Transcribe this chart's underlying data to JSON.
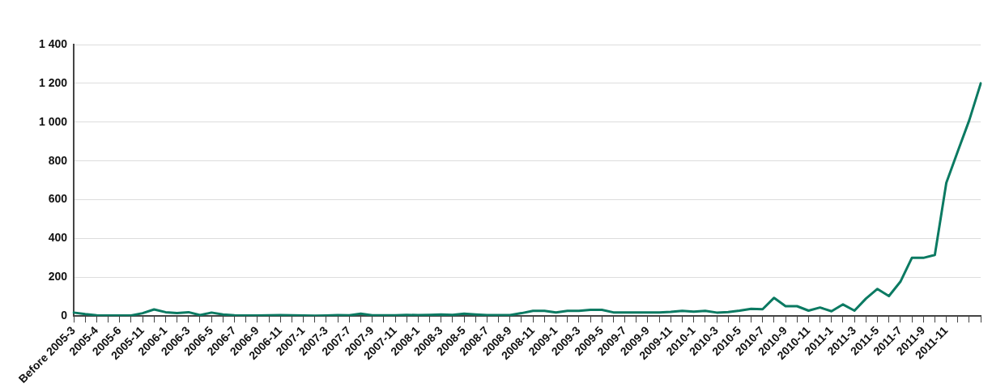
{
  "chart_data": {
    "type": "line",
    "categories": [
      "Before 2005-3",
      null,
      "2005-4",
      null,
      "2005-6",
      null,
      "2005-11",
      null,
      "2006-1",
      null,
      "2006-3",
      null,
      "2006-5",
      null,
      "2006-7",
      null,
      "2006-9",
      null,
      "2006-11",
      null,
      "2007-1",
      null,
      "2007-3",
      null,
      "2007-7",
      null,
      "2007-9",
      null,
      "2007-11",
      null,
      "2008-1",
      null,
      "2008-3",
      null,
      "2008-5",
      null,
      "2008-7",
      null,
      "2008-9",
      null,
      "2008-11",
      null,
      "2009-1",
      null,
      "2009-3",
      null,
      "2009-5",
      null,
      "2009-7",
      null,
      "2009-9",
      null,
      "2009-11",
      null,
      "2010-1",
      null,
      "2010-3",
      null,
      "2010-5",
      null,
      "2010-7",
      null,
      "2010-9",
      null,
      "2010-11",
      null,
      "2011-1",
      null,
      "2011-3",
      null,
      "2011-5",
      null,
      "2011-7",
      null,
      "2011-9",
      null,
      "2011-11",
      null,
      null,
      null
    ],
    "series": [
      {
        "color": "#0b7a62",
        "values": [
          18,
          10,
          4,
          3,
          3,
          3,
          15,
          34,
          20,
          15,
          20,
          5,
          18,
          8,
          4,
          3,
          3,
          4,
          5,
          4,
          3,
          2,
          3,
          5,
          4,
          12,
          4,
          4,
          4,
          6,
          5,
          6,
          8,
          6,
          12,
          8,
          5,
          5,
          5,
          15,
          27,
          27,
          19,
          27,
          27,
          32,
          32,
          19,
          19,
          19,
          19,
          19,
          22,
          27,
          23,
          27,
          18,
          21,
          28,
          37,
          35,
          94,
          51,
          51,
          28,
          44,
          25,
          60,
          28,
          90,
          140,
          103,
          177,
          300,
          300,
          315,
          687,
          850,
          1010,
          1200
        ]
      }
    ],
    "ylim": [
      0,
      1400
    ],
    "yticks": [
      0,
      200,
      400,
      600,
      800,
      {
        "value": 1000,
        "label": "1 000"
      },
      {
        "value": 1200,
        "label": "1 200"
      },
      {
        "value": 1400,
        "label": "1 400"
      }
    ],
    "grid": "y",
    "legend": false,
    "marker": "none",
    "line_style": "solid"
  }
}
